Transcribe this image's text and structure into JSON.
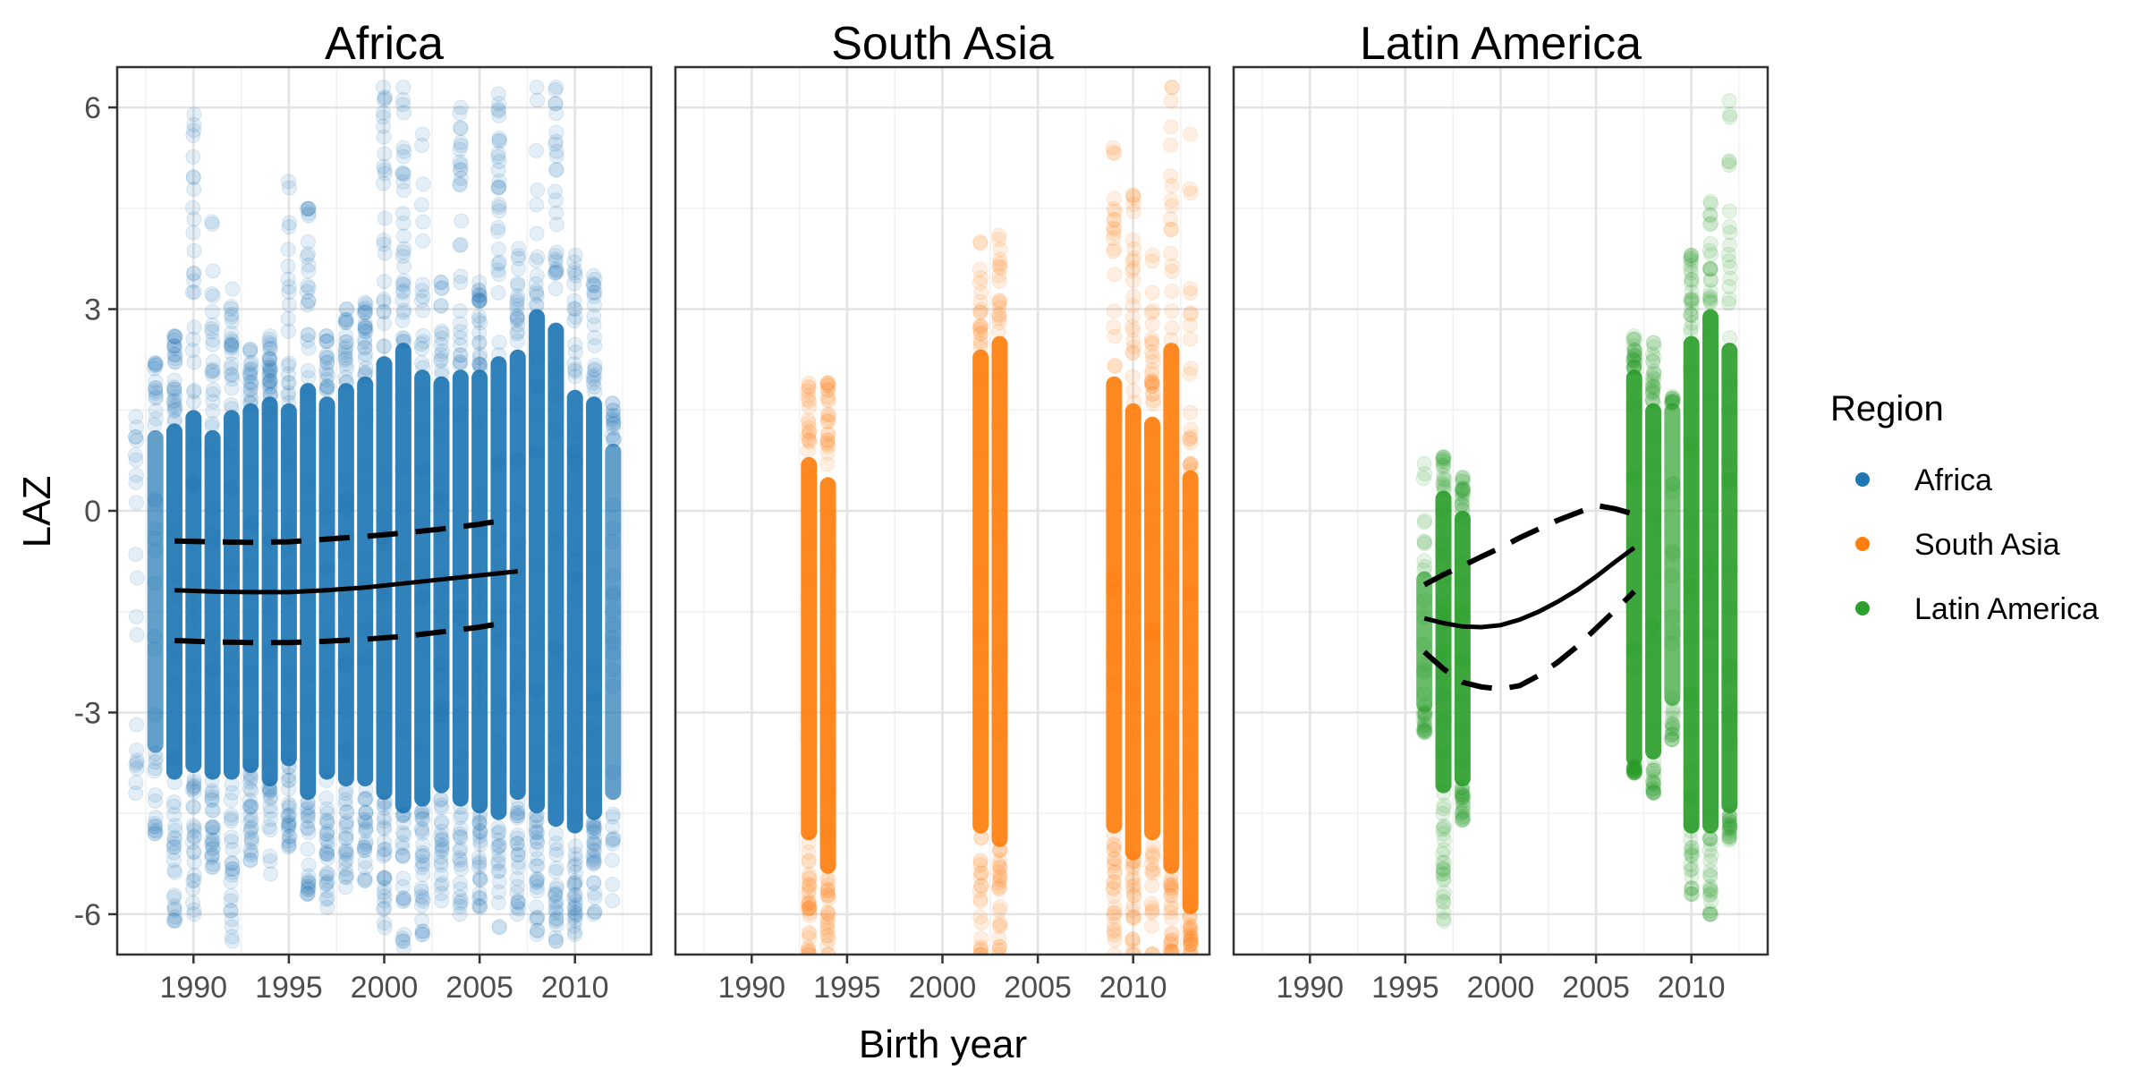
{
  "chart_data": {
    "type": "scatter",
    "xlabel": "Birth year",
    "ylabel": "LAZ",
    "xlim": [
      1986,
      2014
    ],
    "ylim": [
      -6.6,
      6.6
    ],
    "x_ticks": [
      1990,
      1995,
      2000,
      2005,
      2010
    ],
    "y_ticks": [
      6,
      3,
      0,
      -3,
      -6
    ],
    "y_tick_labels": [
      "6",
      "3",
      "0",
      "-3",
      "-6"
    ],
    "grid": true,
    "legend": {
      "title": "Region",
      "position": "right",
      "entries": [
        {
          "name": "Africa",
          "color": "#1f77b4"
        },
        {
          "name": "South Asia",
          "color": "#ff7f0e"
        },
        {
          "name": "Latin America",
          "color": "#2ca02c"
        }
      ]
    },
    "panels": [
      {
        "title": "Africa",
        "color": "#1f77b4",
        "point_columns": [
          {
            "x": 1987,
            "core": [
              -3.2,
              0.4
            ],
            "outer": [
              -4.2,
              1.4
            ],
            "density": "sparse"
          },
          {
            "x": 1988,
            "core": [
              -3.6,
              1.2
            ],
            "outer": [
              -4.8,
              2.2
            ],
            "density": "medium"
          },
          {
            "x": 1989,
            "core": [
              -4.0,
              1.3
            ],
            "outer": [
              -6.1,
              2.6
            ],
            "density": "dense"
          },
          {
            "x": 1990,
            "core": [
              -3.9,
              1.5
            ],
            "outer": [
              -6.0,
              5.9
            ],
            "density": "dense"
          },
          {
            "x": 1991,
            "core": [
              -4.0,
              1.2
            ],
            "outer": [
              -5.3,
              4.3
            ],
            "density": "dense"
          },
          {
            "x": 1992,
            "core": [
              -4.0,
              1.5
            ],
            "outer": [
              -6.4,
              3.3
            ],
            "density": "dense"
          },
          {
            "x": 1993,
            "core": [
              -3.9,
              1.6
            ],
            "outer": [
              -5.2,
              2.4
            ],
            "density": "dense"
          },
          {
            "x": 1994,
            "core": [
              -4.1,
              1.7
            ],
            "outer": [
              -5.4,
              2.6
            ],
            "density": "dense"
          },
          {
            "x": 1995,
            "core": [
              -3.8,
              1.6
            ],
            "outer": [
              -5.0,
              4.9
            ],
            "density": "dense"
          },
          {
            "x": 1996,
            "core": [
              -4.3,
              1.9
            ],
            "outer": [
              -5.7,
              4.5
            ],
            "density": "dense"
          },
          {
            "x": 1997,
            "core": [
              -4.0,
              1.7
            ],
            "outer": [
              -5.9,
              2.6
            ],
            "density": "dense"
          },
          {
            "x": 1998,
            "core": [
              -4.1,
              1.9
            ],
            "outer": [
              -5.6,
              3.0
            ],
            "density": "dense"
          },
          {
            "x": 1999,
            "core": [
              -4.1,
              2.0
            ],
            "outer": [
              -5.5,
              3.1
            ],
            "density": "dense"
          },
          {
            "x": 2000,
            "core": [
              -4.3,
              2.3
            ],
            "outer": [
              -6.2,
              6.3
            ],
            "density": "dense"
          },
          {
            "x": 2001,
            "core": [
              -4.5,
              2.5
            ],
            "outer": [
              -6.5,
              6.3
            ],
            "density": "dense"
          },
          {
            "x": 2002,
            "core": [
              -4.4,
              2.1
            ],
            "outer": [
              -6.3,
              5.6
            ],
            "density": "dense"
          },
          {
            "x": 2003,
            "core": [
              -4.2,
              2.0
            ],
            "outer": [
              -5.8,
              3.4
            ],
            "density": "dense"
          },
          {
            "x": 2004,
            "core": [
              -4.4,
              2.1
            ],
            "outer": [
              -6.0,
              6.0
            ],
            "density": "dense"
          },
          {
            "x": 2005,
            "core": [
              -4.5,
              2.1
            ],
            "outer": [
              -5.9,
              3.4
            ],
            "density": "dense"
          },
          {
            "x": 2006,
            "core": [
              -4.6,
              2.3
            ],
            "outer": [
              -6.2,
              6.2
            ],
            "density": "dense"
          },
          {
            "x": 2007,
            "core": [
              -4.3,
              2.4
            ],
            "outer": [
              -6.0,
              3.9
            ],
            "density": "dense"
          },
          {
            "x": 2008,
            "core": [
              -4.5,
              3.0
            ],
            "outer": [
              -6.3,
              6.3
            ],
            "density": "dense"
          },
          {
            "x": 2009,
            "core": [
              -4.7,
              2.8
            ],
            "outer": [
              -6.4,
              6.3
            ],
            "density": "dense"
          },
          {
            "x": 2010,
            "core": [
              -4.8,
              1.8
            ],
            "outer": [
              -6.3,
              3.8
            ],
            "density": "dense"
          },
          {
            "x": 2011,
            "core": [
              -4.6,
              1.7
            ],
            "outer": [
              -6.0,
              3.5
            ],
            "density": "dense"
          },
          {
            "x": 2012,
            "core": [
              -4.3,
              1.0
            ],
            "outer": [
              -5.8,
              1.6
            ],
            "density": "medium"
          }
        ],
        "fit": {
          "x": [
            1989,
            1991,
            1993,
            1995,
            1997,
            1999,
            2001,
            2003,
            2005,
            2007
          ],
          "mean": [
            -1.18,
            -1.2,
            -1.21,
            -1.21,
            -1.18,
            -1.14,
            -1.08,
            -1.02,
            -0.96,
            -0.9
          ]
        },
        "ci": {
          "x": [
            1989,
            1991,
            1993,
            1995,
            1997,
            1999,
            2001,
            2003,
            2005,
            2006
          ],
          "upper": [
            -0.45,
            -0.46,
            -0.47,
            -0.46,
            -0.42,
            -0.38,
            -0.33,
            -0.27,
            -0.2,
            -0.15
          ],
          "lower": [
            -1.93,
            -1.95,
            -1.96,
            -1.96,
            -1.94,
            -1.91,
            -1.87,
            -1.8,
            -1.73,
            -1.68
          ]
        }
      },
      {
        "title": "South Asia",
        "color": "#ff7f0e",
        "point_columns": [
          {
            "x": 1993,
            "core": [
              -4.9,
              0.8
            ],
            "outer": [
              -6.6,
              1.9
            ],
            "density": "dense"
          },
          {
            "x": 1994,
            "core": [
              -5.4,
              0.5
            ],
            "outer": [
              -6.6,
              1.9
            ],
            "density": "dense"
          },
          {
            "x": 2002,
            "core": [
              -4.8,
              2.4
            ],
            "outer": [
              -6.6,
              4.0
            ],
            "density": "dense"
          },
          {
            "x": 2003,
            "core": [
              -5.0,
              2.6
            ],
            "outer": [
              -6.6,
              4.1
            ],
            "density": "dense"
          },
          {
            "x": 2009,
            "core": [
              -4.8,
              2.0
            ],
            "outer": [
              -6.6,
              5.4
            ],
            "density": "dense"
          },
          {
            "x": 2010,
            "core": [
              -5.2,
              1.6
            ],
            "outer": [
              -6.6,
              4.7
            ],
            "density": "dense"
          },
          {
            "x": 2011,
            "core": [
              -4.9,
              1.4
            ],
            "outer": [
              -6.6,
              3.8
            ],
            "density": "dense"
          },
          {
            "x": 2012,
            "core": [
              -5.4,
              2.5
            ],
            "outer": [
              -6.6,
              6.3
            ],
            "density": "dense"
          },
          {
            "x": 2013,
            "core": [
              -6.0,
              0.6
            ],
            "outer": [
              -6.6,
              5.6
            ],
            "density": "dense"
          }
        ]
      },
      {
        "title": "Latin America",
        "color": "#2ca02c",
        "point_columns": [
          {
            "x": 1996,
            "core": [
              -3.0,
              -0.9
            ],
            "outer": [
              -3.3,
              0.7
            ],
            "density": "medium"
          },
          {
            "x": 1997,
            "core": [
              -4.2,
              0.3
            ],
            "outer": [
              -6.1,
              0.8
            ],
            "density": "dense"
          },
          {
            "x": 1998,
            "core": [
              -4.1,
              0.0
            ],
            "outer": [
              -4.6,
              0.5
            ],
            "density": "dense"
          },
          {
            "x": 2007,
            "core": [
              -3.8,
              2.1
            ],
            "outer": [
              -3.9,
              2.6
            ],
            "density": "dense"
          },
          {
            "x": 2008,
            "core": [
              -3.7,
              1.6
            ],
            "outer": [
              -4.2,
              2.5
            ],
            "density": "dense"
          },
          {
            "x": 2009,
            "core": [
              -2.9,
              1.6
            ],
            "outer": [
              -3.4,
              1.7
            ],
            "density": "medium"
          },
          {
            "x": 2010,
            "core": [
              -4.8,
              2.6
            ],
            "outer": [
              -5.7,
              3.8
            ],
            "density": "dense"
          },
          {
            "x": 2011,
            "core": [
              -4.8,
              3.0
            ],
            "outer": [
              -6.0,
              4.6
            ],
            "density": "dense"
          },
          {
            "x": 2012,
            "core": [
              -4.5,
              2.5
            ],
            "outer": [
              -4.9,
              6.1
            ],
            "density": "dense"
          }
        ],
        "fit": {
          "x": [
            1996,
            1997,
            1998,
            1999,
            2000,
            2001,
            2002,
            2003,
            2004,
            2005,
            2006,
            2007
          ],
          "mean": [
            -1.6,
            -1.67,
            -1.72,
            -1.73,
            -1.7,
            -1.62,
            -1.5,
            -1.35,
            -1.18,
            -0.98,
            -0.76,
            -0.55
          ]
        },
        "ci": {
          "x": [
            1996,
            1997,
            1998,
            1999,
            2000,
            2001,
            2002,
            2003,
            2004,
            2005,
            2006,
            2007
          ],
          "upper": [
            -1.1,
            -0.95,
            -0.82,
            -0.68,
            -0.55,
            -0.4,
            -0.27,
            -0.14,
            -0.03,
            0.08,
            0.03,
            -0.05
          ],
          "lower": [
            -2.1,
            -2.35,
            -2.55,
            -2.62,
            -2.65,
            -2.6,
            -2.45,
            -2.25,
            -2.02,
            -1.75,
            -1.48,
            -1.2
          ]
        }
      }
    ]
  }
}
